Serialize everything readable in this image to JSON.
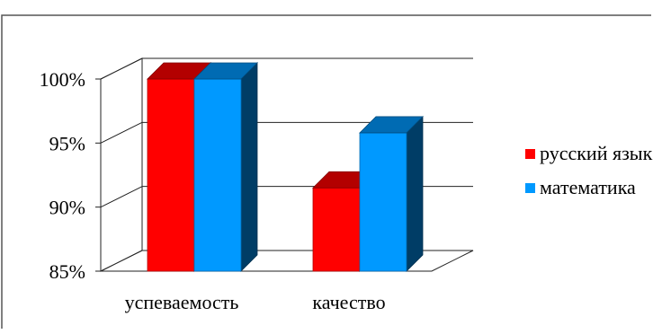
{
  "chart_data": {
    "type": "bar",
    "categories": [
      "успеваемость",
      "качество"
    ],
    "series": [
      {
        "name": "русский язык",
        "values": [
          100,
          91.5
        ],
        "color": "#ff0000"
      },
      {
        "name": "математика",
        "values": [
          100,
          95.8
        ],
        "color": "#0099ff"
      }
    ],
    "ylim": [
      85,
      100
    ],
    "yticks": [
      "85%",
      "90%",
      "95%",
      "100%"
    ],
    "grid": true,
    "legend_position": "right",
    "three_d": true
  }
}
